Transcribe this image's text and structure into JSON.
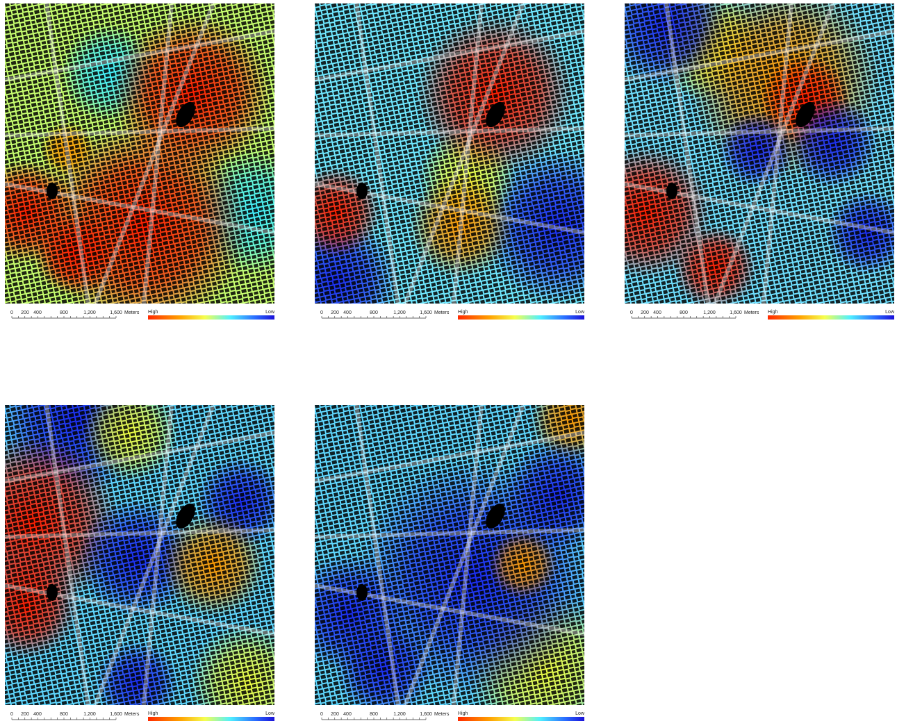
{
  "panels": [
    {
      "scale": [
        "0",
        "200",
        "400",
        "800",
        "1,200",
        "1,600"
      ],
      "unit": "Meters",
      "high": "High",
      "low": "Low"
    },
    {
      "scale": [
        "0",
        "200",
        "400",
        "800",
        "1,200",
        "1,600"
      ],
      "unit": "Meters",
      "high": "High",
      "low": "Low"
    },
    {
      "scale": [
        "0",
        "200",
        "400",
        "800",
        "1,200",
        "1,600"
      ],
      "unit": "Meters",
      "high": "High",
      "low": "Low"
    },
    {
      "scale": [
        "0",
        "200",
        "400",
        "800",
        "1,200",
        "1,600"
      ],
      "unit": "Meters",
      "high": "High",
      "low": "Low"
    },
    {
      "scale": [
        "0",
        "200",
        "400",
        "800",
        "1,200",
        "1,600"
      ],
      "unit": "Meters",
      "high": "High",
      "low": "Low"
    }
  ]
}
